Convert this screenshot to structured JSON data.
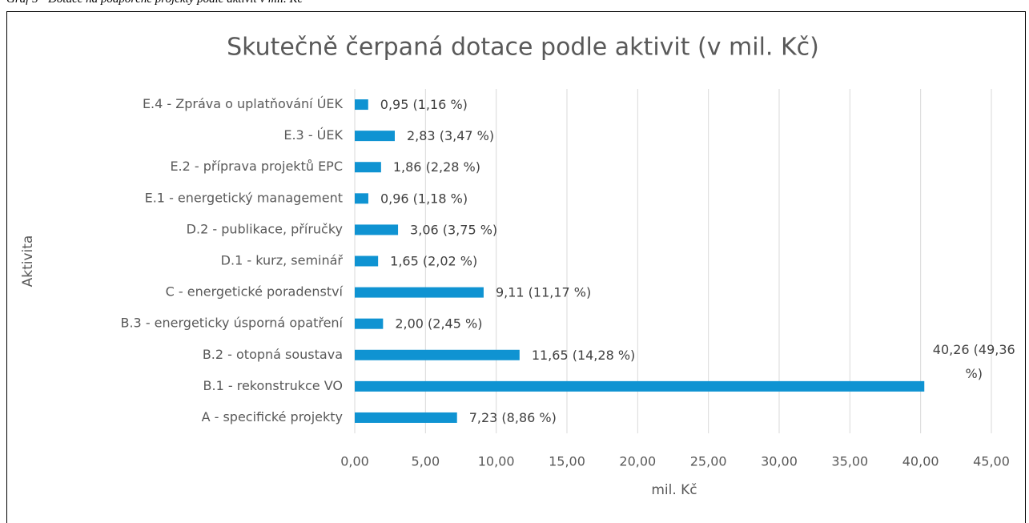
{
  "caption": "Graf 5 - Dotace na podpořené projekty podle aktivit v mil. Kč",
  "chart_data": {
    "type": "hbar",
    "title": "Skutečně čerpaná dotace podle aktivit (v mil. Kč)",
    "x_label": "mil. Kč",
    "y_label": "Aktivita",
    "categories": [
      "E.4 - Zpráva o uplatňování ÚEK",
      "E.3 - ÚEK",
      "E.2 - příprava projektů EPC",
      "E.1 - energetický management",
      "D.2 - publikace, příručky",
      "D.1 - kurz, seminář",
      "C - energetické poradenství",
      "B.3 - energeticky úsporná opatření",
      "B.2 - otopná soustava",
      "B.1 - rekonstrukce VO",
      "A - specifické projekty"
    ],
    "values": [
      0.95,
      2.83,
      1.86,
      0.96,
      3.06,
      1.65,
      9.11,
      2.0,
      11.65,
      40.26,
      7.23
    ],
    "value_labels": [
      "0,95 (1,16 %)",
      "2,83 (3,47 %)",
      "1,86 (2,28 %)",
      "0,96 (1,18 %)",
      "3,06 (3,75 %)",
      "1,65 (2,02 %)",
      "9,11 (11,17 %)",
      "2,00 (2,45 %)",
      "11,65 (14,28 %)",
      "40,26 (49,36 %)",
      "7,23 (8,86 %)"
    ],
    "color": "#0f93d2",
    "xlim": [
      0,
      45
    ],
    "xticks": [
      {
        "value": 0,
        "label": "0,00"
      },
      {
        "value": 5,
        "label": "5,00"
      },
      {
        "value": 10,
        "label": "10,00"
      },
      {
        "value": 15,
        "label": "15,00"
      },
      {
        "value": 20,
        "label": "20,00"
      },
      {
        "value": 25,
        "label": "25,00"
      },
      {
        "value": 30,
        "label": "30,00"
      },
      {
        "value": 35,
        "label": "35,00"
      },
      {
        "value": 40,
        "label": "40,00"
      },
      {
        "value": 45,
        "label": "45,00"
      }
    ],
    "grid": true
  }
}
